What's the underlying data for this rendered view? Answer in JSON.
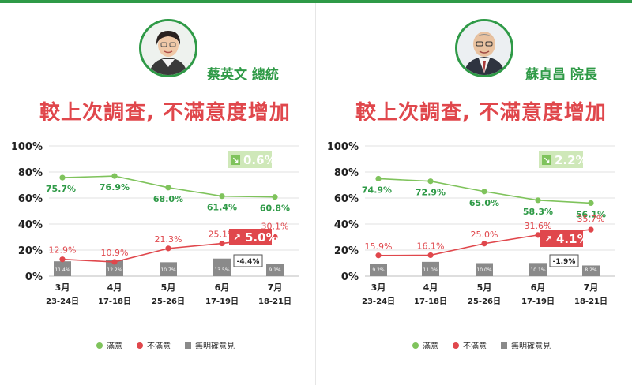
{
  "colors": {
    "satisfied": "#7fc35c",
    "satisfied_text": "#2f9a47",
    "dissatisfied": "#e0474c",
    "no_opinion": "#8a8a8a",
    "brand": "#2f9a47"
  },
  "legend": [
    "滿意",
    "不滿意",
    "無明確意見"
  ],
  "chart_data": [
    {
      "type": "line",
      "person": "蔡英文 總統",
      "title": "較上次調查, 不滿意度增加",
      "categories": [
        "3月",
        "4月",
        "5月",
        "6月",
        "7月"
      ],
      "dates": [
        "23-24日",
        "17-18日",
        "25-26日",
        "17-19日",
        "18-21日"
      ],
      "y_ticks": [
        "100%",
        "80%",
        "60%",
        "40%",
        "20%",
        "0%"
      ],
      "ylim": [
        0,
        100
      ],
      "series": [
        {
          "name": "滿意",
          "values": [
            75.7,
            76.9,
            68.0,
            61.4,
            60.8
          ],
          "labels": [
            "75.7%",
            "76.9%",
            "68.0%",
            "61.4%",
            "60.8%"
          ]
        },
        {
          "name": "不滿意",
          "values": [
            12.9,
            10.9,
            21.3,
            25.1,
            30.1
          ],
          "labels": [
            "12.9%",
            "10.9%",
            "21.3%",
            "25.1%",
            "30.1%"
          ]
        },
        {
          "name": "無明確意見",
          "type": "bar",
          "values": [
            11.4,
            12.2,
            10.7,
            13.5,
            9.1
          ],
          "labels": [
            "11.4%",
            "12.2%",
            "10.7%",
            "13.5%",
            "9.1%"
          ]
        }
      ],
      "change_badges": [
        {
          "text": "0.6%",
          "direction": "down",
          "series": "滿意"
        },
        {
          "text": "5.0%",
          "direction": "up",
          "series": "不滿意"
        },
        {
          "text": "-4.4%",
          "direction": "none",
          "series": "無明確意見"
        }
      ]
    },
    {
      "type": "line",
      "person": "蘇貞昌 院長",
      "title": "較上次調查, 不滿意度增加",
      "categories": [
        "3月",
        "4月",
        "5月",
        "6月",
        "7月"
      ],
      "dates": [
        "23-24日",
        "17-18日",
        "25-26日",
        "17-19日",
        "18-21日"
      ],
      "y_ticks": [
        "100%",
        "80%",
        "60%",
        "40%",
        "20%",
        "0%"
      ],
      "ylim": [
        0,
        100
      ],
      "series": [
        {
          "name": "滿意",
          "values": [
            74.9,
            72.9,
            65.0,
            58.3,
            56.1
          ],
          "labels": [
            "74.9%",
            "72.9%",
            "65.0%",
            "58.3%",
            "56.1%"
          ]
        },
        {
          "name": "不滿意",
          "values": [
            15.9,
            16.1,
            25.0,
            31.6,
            35.7
          ],
          "labels": [
            "15.9%",
            "16.1%",
            "25.0%",
            "31.6%",
            "35.7%"
          ]
        },
        {
          "name": "無明確意見",
          "type": "bar",
          "values": [
            9.2,
            11.0,
            10.0,
            10.1,
            8.2
          ],
          "labels": [
            "9.2%",
            "11.0%",
            "10.0%",
            "10.1%",
            "8.2%"
          ]
        }
      ],
      "change_badges": [
        {
          "text": "2.2%",
          "direction": "down",
          "series": "滿意"
        },
        {
          "text": "4.1%",
          "direction": "up",
          "series": "不滿意"
        },
        {
          "text": "-1.9%",
          "direction": "none",
          "series": "無明確意見"
        }
      ]
    }
  ]
}
